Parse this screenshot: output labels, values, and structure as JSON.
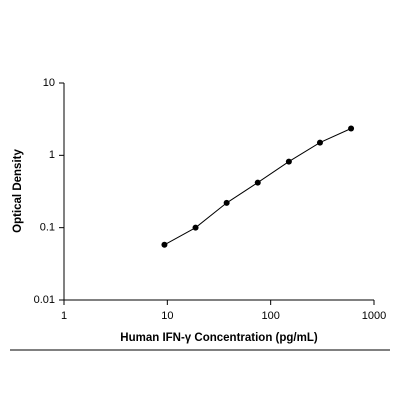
{
  "chart_data": {
    "type": "line",
    "markers": true,
    "color": "#000000",
    "x_label": "Human IFN-γ Concentration (pg/mL)",
    "y_label": "Optical Density",
    "x": [
      9.375,
      18.75,
      37.5,
      75,
      150,
      300,
      600
    ],
    "values": [
      0.058,
      0.1,
      0.22,
      0.42,
      0.82,
      1.5,
      2.35
    ],
    "xscale": "log",
    "yscale": "log",
    "xlim": [
      1,
      1000
    ],
    "ylim": [
      0.01,
      10
    ],
    "xticks": [
      1,
      10,
      100,
      1000
    ],
    "yticks": [
      0.01,
      0.1,
      1,
      10
    ]
  }
}
